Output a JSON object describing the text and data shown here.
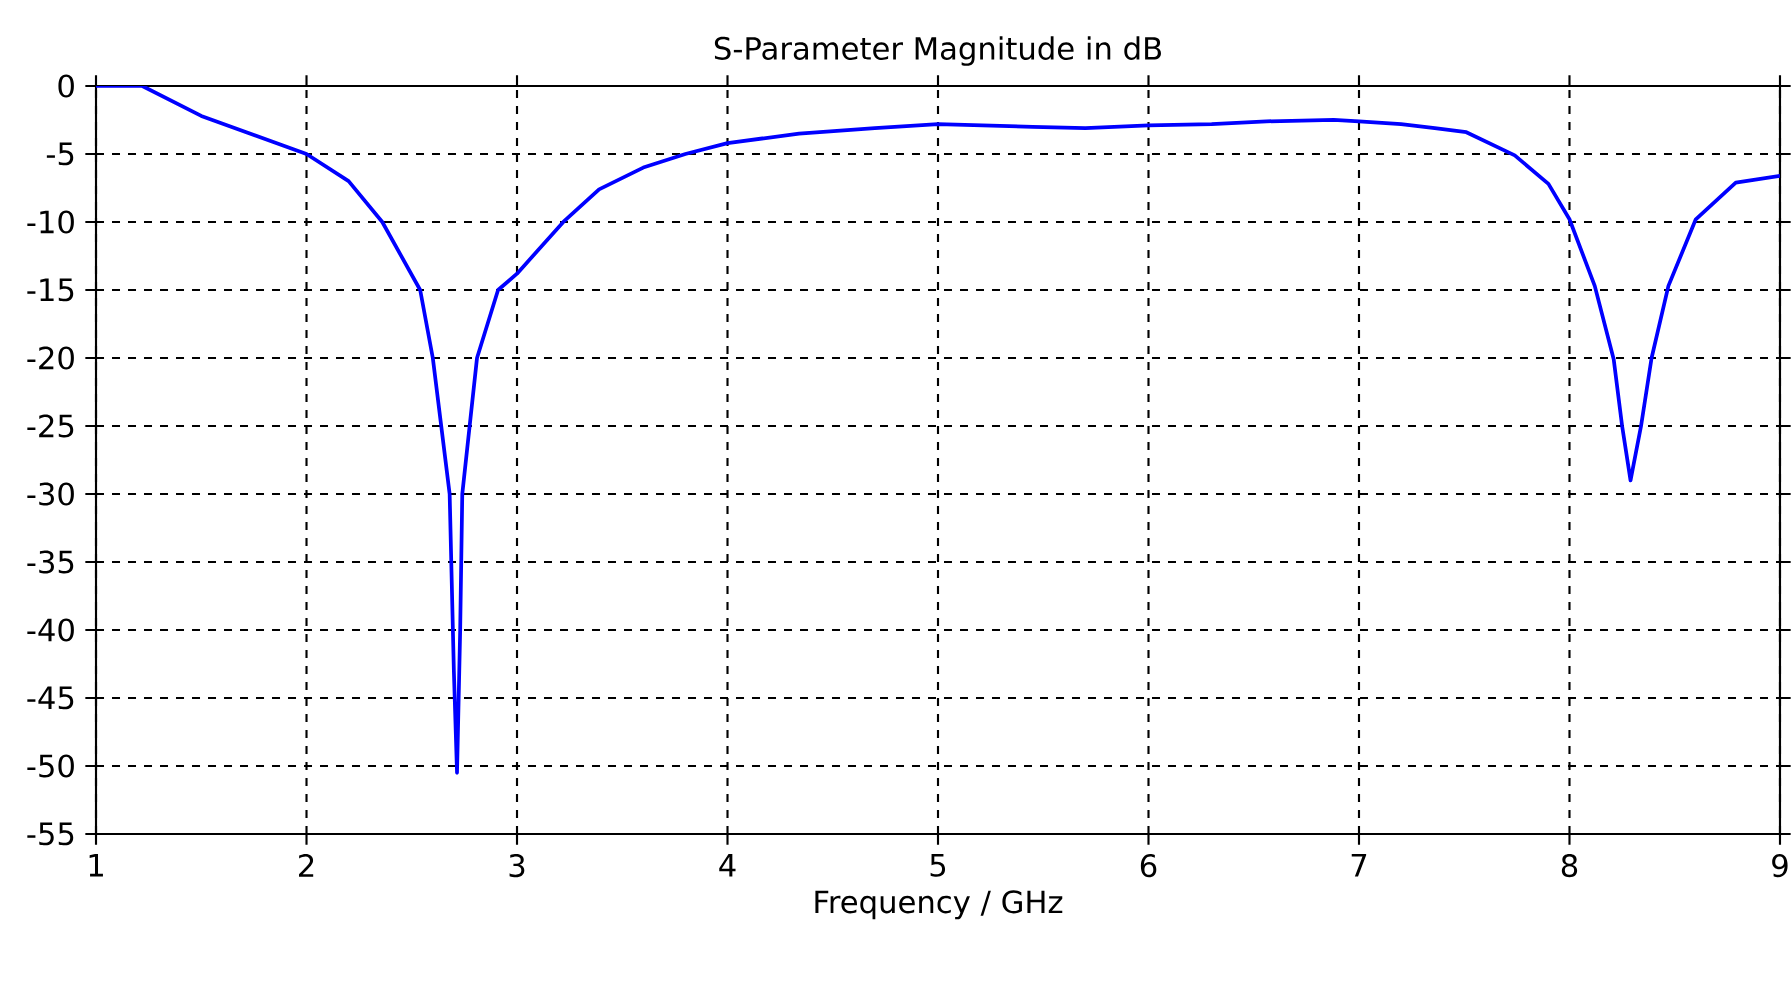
{
  "chart_data": {
    "type": "line",
    "title": "S-Parameter Magnitude in dB",
    "xlabel": "Frequency / GHz",
    "series": [
      {
        "color": "#0000ff",
        "x": [
          1.0,
          1.1,
          1.22,
          1.5,
          1.75,
          2.0,
          2.2,
          2.36,
          2.54,
          2.6,
          2.64,
          2.68,
          2.7,
          2.715,
          2.73,
          2.74,
          2.81,
          2.91,
          3.0,
          3.22,
          3.39,
          3.6,
          3.8,
          4.0,
          4.34,
          4.7,
          5.0,
          5.45,
          5.7,
          6.0,
          6.3,
          6.56,
          6.88,
          7.0,
          7.2,
          7.36,
          7.51,
          7.74,
          7.9,
          8.0,
          8.12,
          8.21,
          8.25,
          8.29,
          8.34,
          8.39,
          8.47,
          8.6,
          8.79,
          9.0
        ],
        "values": [
          0,
          0,
          0,
          -2.2,
          -3.6,
          -5.0,
          -7.0,
          -10,
          -15,
          -20,
          -25,
          -30,
          -43,
          -50.5,
          -40,
          -30,
          -20,
          -15,
          -13.8,
          -10,
          -7.6,
          -6.0,
          -5.0,
          -4.2,
          -3.5,
          -3.1,
          -2.8,
          -3.0,
          -3.1,
          -2.9,
          -2.8,
          -2.6,
          -2.5,
          -2.6,
          -2.8,
          -3.1,
          -3.4,
          -5.1,
          -7.2,
          -9.8,
          -14.7,
          -20.1,
          -25,
          -29.0,
          -25,
          -20,
          -14.7,
          -9.8,
          -7.1,
          -6.6
        ]
      }
    ],
    "xlim": [
      1,
      9
    ],
    "ylim": [
      -55,
      0
    ],
    "xticks": [
      1,
      2,
      3,
      4,
      5,
      6,
      7,
      8,
      9
    ],
    "yticks": [
      -55,
      -50,
      -45,
      -40,
      -35,
      -30,
      -25,
      -20,
      -15,
      -10,
      -5,
      0
    ],
    "grid": true,
    "marker": "none",
    "line_style": "solid"
  }
}
